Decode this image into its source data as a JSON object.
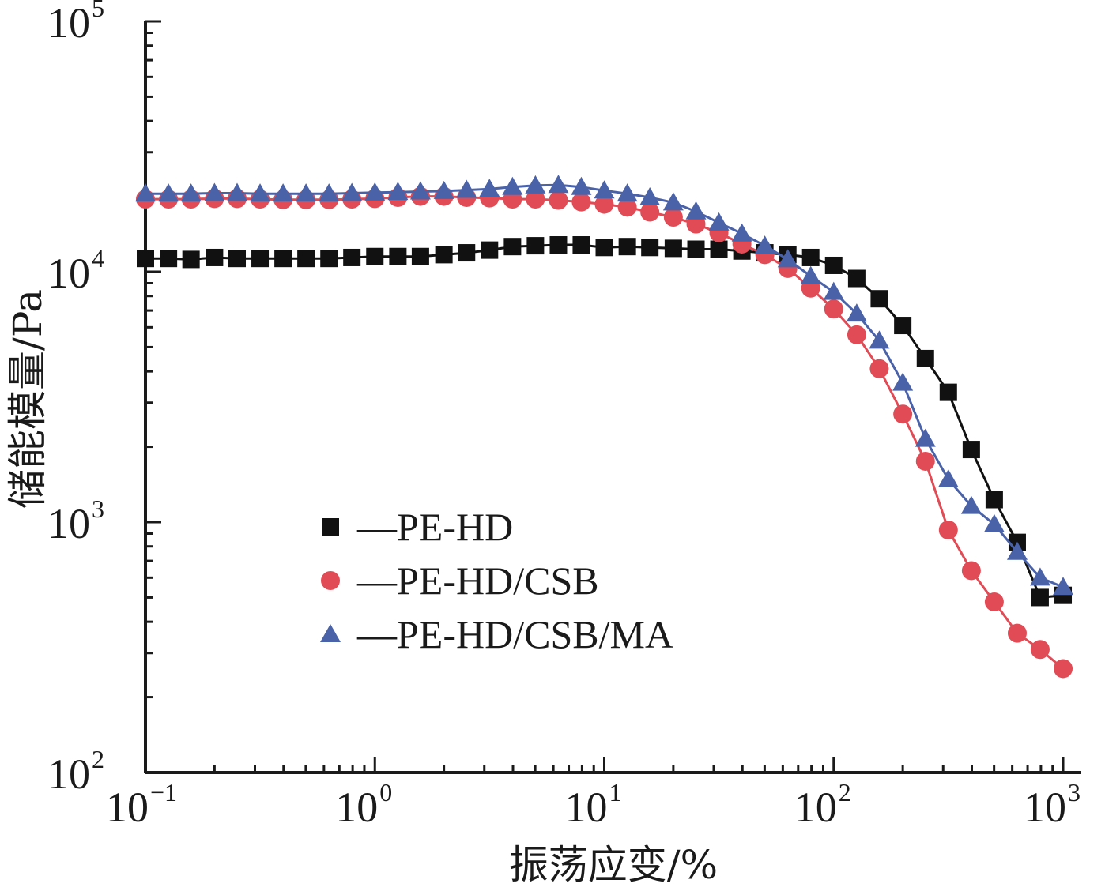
{
  "chart_data": {
    "type": "line",
    "xlabel": "振荡应变/%",
    "ylabel": "储能模量/Pa",
    "x_scale": "log",
    "y_scale": "log",
    "xlim": [
      0.1,
      1200
    ],
    "ylim": [
      100,
      100000
    ],
    "x_ticks": [
      {
        "base": "10",
        "exp": "−1",
        "value": 0.1
      },
      {
        "base": "10",
        "exp": "0",
        "value": 1
      },
      {
        "base": "10",
        "exp": "1",
        "value": 10
      },
      {
        "base": "10",
        "exp": "2",
        "value": 100
      },
      {
        "base": "10",
        "exp": "3",
        "value": 1000
      }
    ],
    "y_ticks": [
      {
        "base": "10",
        "exp": "2",
        "value": 100
      },
      {
        "base": "10",
        "exp": "3",
        "value": 1000
      },
      {
        "base": "10",
        "exp": "4",
        "value": 10000
      },
      {
        "base": "10",
        "exp": "5",
        "value": 100000
      }
    ],
    "grid": false,
    "legend_position": "center-left",
    "x": [
      0.1,
      0.126,
      0.158,
      0.2,
      0.251,
      0.316,
      0.398,
      0.501,
      0.631,
      0.794,
      1,
      1.26,
      1.58,
      2,
      2.51,
      3.16,
      3.98,
      5.01,
      6.31,
      7.94,
      10,
      12.6,
      15.8,
      20,
      25.1,
      31.6,
      39.8,
      50.1,
      63.1,
      79.4,
      100,
      126,
      158,
      200,
      251,
      316,
      398,
      501,
      631,
      794,
      1000
    ],
    "series": [
      {
        "name": "—PE-HD",
        "marker": "square",
        "color": "#111111",
        "values": [
          11300,
          11300,
          11200,
          11400,
          11300,
          11300,
          11300,
          11300,
          11300,
          11400,
          11500,
          11500,
          11500,
          11700,
          11900,
          12200,
          12600,
          12700,
          12800,
          12800,
          12500,
          12600,
          12500,
          12400,
          12300,
          12300,
          12100,
          11900,
          11700,
          11400,
          10600,
          9400,
          7800,
          6100,
          4500,
          3300,
          1950,
          1230,
          830,
          500,
          510
        ]
      },
      {
        "name": "—PE-HD/CSB",
        "marker": "circle",
        "color": "#e04b55",
        "values": [
          19500,
          19500,
          19500,
          19600,
          19600,
          19500,
          19400,
          19400,
          19400,
          19500,
          19600,
          19800,
          20000,
          20000,
          19800,
          19700,
          19500,
          19500,
          19300,
          19000,
          18600,
          18100,
          17300,
          16500,
          15500,
          14300,
          12900,
          11700,
          10300,
          8600,
          7100,
          5600,
          4100,
          2700,
          1750,
          930,
          640,
          480,
          360,
          310,
          260
        ]
      },
      {
        "name": "—PE-HD/CSB/MA",
        "marker": "triangle",
        "color": "#4a62a8",
        "values": [
          20500,
          20500,
          20500,
          20600,
          20600,
          20500,
          20500,
          20500,
          20500,
          20600,
          20700,
          20800,
          20900,
          21000,
          21200,
          21400,
          21800,
          22100,
          22200,
          21800,
          21100,
          20500,
          19800,
          18900,
          17400,
          15700,
          14200,
          12700,
          11200,
          9600,
          8300,
          6800,
          5300,
          3600,
          2150,
          1480,
          1160,
          980,
          760,
          600,
          550
        ]
      }
    ]
  }
}
